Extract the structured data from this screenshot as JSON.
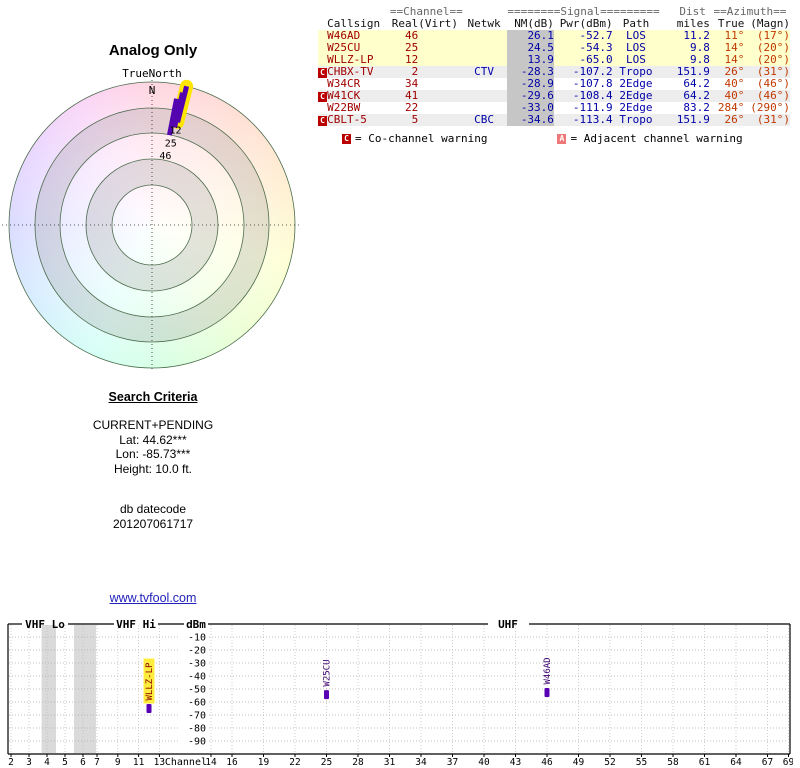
{
  "radar": {
    "title": "Analog Only",
    "subtitle": "TrueNorth",
    "north": "N",
    "markers": [
      {
        "label": "46",
        "angle_deg": 11,
        "inner_r": 0.64,
        "outer_r": 0.9,
        "label_r": 0.49,
        "highlight": false
      },
      {
        "label": "25",
        "angle_deg": 13,
        "inner_r": 0.7,
        "outer_r": 0.95,
        "label_r": 0.585,
        "highlight": false
      },
      {
        "label": "12",
        "angle_deg": 14,
        "inner_r": 0.74,
        "outer_r": 1.0,
        "label_r": 0.68,
        "highlight": true
      }
    ]
  },
  "table": {
    "group_headers": {
      "channel": "==Channel==",
      "signal": "========Signal=========",
      "dist": "Dist",
      "azimuth": "==Azimuth=="
    },
    "columns": [
      "Callsign",
      "Real",
      "(Virt)",
      "Netwk",
      "NM(dB)",
      "Pwr(dBm)",
      "Path",
      "miles",
      "True",
      "(Magn)"
    ],
    "rows": [
      {
        "warn": "",
        "callsign": "W46AD",
        "real": "46",
        "virt": "",
        "netwk": "",
        "nm": "26.1",
        "pwr": "-52.7",
        "path": "LOS",
        "miles": "11.2",
        "true": "11°",
        "magn": "(17°)",
        "hl": true
      },
      {
        "warn": "",
        "callsign": "W25CU",
        "real": "25",
        "virt": "",
        "netwk": "",
        "nm": "24.5",
        "pwr": "-54.3",
        "path": "LOS",
        "miles": "9.8",
        "true": "14°",
        "magn": "(20°)",
        "hl": true
      },
      {
        "warn": "",
        "callsign": "WLLZ-LP",
        "real": "12",
        "virt": "",
        "netwk": "",
        "nm": "13.9",
        "pwr": "-65.0",
        "path": "LOS",
        "miles": "9.8",
        "true": "14°",
        "magn": "(20°)",
        "hl": true
      },
      {
        "warn": "C",
        "callsign": "CHBX-TV",
        "real": "2",
        "virt": "",
        "netwk": "CTV",
        "nm": "-28.3",
        "pwr": "-107.2",
        "path": "Tropo",
        "miles": "151.9",
        "true": "26°",
        "magn": "(31°)",
        "hl": false
      },
      {
        "warn": "",
        "callsign": "W34CR",
        "real": "34",
        "virt": "",
        "netwk": "",
        "nm": "-28.9",
        "pwr": "-107.8",
        "path": "2Edge",
        "miles": "64.2",
        "true": "40°",
        "magn": "(46°)",
        "hl": false
      },
      {
        "warn": "C",
        "callsign": "W41CK",
        "real": "41",
        "virt": "",
        "netwk": "",
        "nm": "-29.6",
        "pwr": "-108.4",
        "path": "2Edge",
        "miles": "64.2",
        "true": "40°",
        "magn": "(46°)",
        "hl": false
      },
      {
        "warn": "",
        "callsign": "W22BW",
        "real": "22",
        "virt": "",
        "netwk": "",
        "nm": "-33.0",
        "pwr": "-111.9",
        "path": "2Edge",
        "miles": "83.2",
        "true": "284°",
        "magn": "(290°)",
        "hl": false
      },
      {
        "warn": "C",
        "callsign": "CBLT-5",
        "real": "5",
        "virt": "",
        "netwk": "CBC",
        "nm": "-34.6",
        "pwr": "-113.4",
        "path": "Tropo",
        "miles": "151.9",
        "true": "26°",
        "magn": "(31°)",
        "hl": false
      }
    ],
    "legend": [
      {
        "badge": "C",
        "text": "= Co-channel warning"
      },
      {
        "badge": "A",
        "text": "= Adjacent channel warning"
      }
    ]
  },
  "search": {
    "heading": "Search Criteria",
    "lines": [
      "CURRENT+PENDING",
      "Lat: 44.62***",
      "Lon: -85.73***",
      "Height: 10.0 ft."
    ],
    "datecode_label": "db datecode",
    "datecode": "201207061717"
  },
  "link": "www.tvfool.com",
  "chart_data": [
    {
      "type": "scatter",
      "projection": "polar",
      "title": "Analog Only",
      "north_reference": "TrueNorth",
      "points": [
        {
          "callsign": "W46AD",
          "channel": 46,
          "azimuth_true_deg": 11,
          "nm_db": 26.1
        },
        {
          "callsign": "W25CU",
          "channel": 25,
          "azimuth_true_deg": 14,
          "nm_db": 24.5
        },
        {
          "callsign": "WLLZ-LP",
          "channel": 12,
          "azimuth_true_deg": 14,
          "nm_db": 13.9
        }
      ]
    },
    {
      "type": "bar",
      "title": "",
      "xlabel": "Channel",
      "ylabel": "dBm",
      "ylim": [
        -100,
        0
      ],
      "yticks": [
        -10,
        -20,
        -30,
        -40,
        -50,
        -60,
        -70,
        -80,
        -90
      ],
      "grid": true,
      "sections": [
        {
          "label": "VHF Lo"
        },
        {
          "label": "VHF Hi"
        },
        {
          "label": "UHF"
        }
      ],
      "vhf_ticks": [
        2,
        3,
        4,
        5,
        6,
        7,
        9,
        11,
        13
      ],
      "uhf_ticks": [
        14,
        16,
        19,
        22,
        25,
        28,
        31,
        34,
        37,
        40,
        43,
        46,
        49,
        52,
        55,
        58,
        61,
        64,
        67,
        69
      ],
      "shaded_bands_channels": [
        [
          3.7,
          4.5
        ],
        [
          5.5,
          6.9
        ]
      ],
      "bars": [
        {
          "callsign": "WLLZ-LP",
          "channel": 12,
          "dbm": -65.0,
          "highlight": true
        },
        {
          "callsign": "W25CU",
          "channel": 25,
          "dbm": -54.3,
          "highlight": false
        },
        {
          "callsign": "W46AD",
          "channel": 46,
          "dbm": -52.7,
          "highlight": false
        }
      ]
    }
  ]
}
